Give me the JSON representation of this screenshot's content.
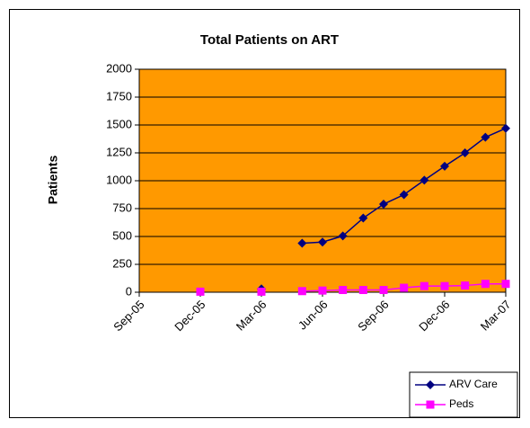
{
  "chart_data": {
    "type": "line",
    "title": "Total Patients on ART",
    "ylabel": "Patients",
    "x": [
      "2005-12",
      "2006-01",
      "2006-02",
      "2006-03",
      "2006-04",
      "2006-05",
      "2006-06",
      "2006-07",
      "2006-08",
      "2006-09",
      "2006-10",
      "2006-11",
      "2006-12",
      "2007-01",
      "2007-02",
      "2007-03"
    ],
    "series": [
      {
        "name": "ARV Care",
        "color": "#000080",
        "marker": "diamond",
        "values": [
          null,
          null,
          null,
          30,
          null,
          440,
          450,
          505,
          665,
          790,
          875,
          1005,
          1130,
          1250,
          1390,
          1470
        ]
      },
      {
        "name": "Peds",
        "color": "#ff00ff",
        "marker": "square",
        "values": [
          5,
          null,
          null,
          5,
          null,
          10,
          15,
          20,
          20,
          20,
          40,
          55,
          55,
          60,
          75,
          75
        ]
      }
    ],
    "xlim": [
      "2005-09",
      "2007-03"
    ],
    "xticks": [
      {
        "value": "2005-09",
        "label": "Sep-05"
      },
      {
        "value": "2005-12",
        "label": "Dec-05"
      },
      {
        "value": "2006-03",
        "label": "Mar-06"
      },
      {
        "value": "2006-06",
        "label": "Jun-06"
      },
      {
        "value": "2006-09",
        "label": "Sep-06"
      },
      {
        "value": "2006-12",
        "label": "Dec-06"
      },
      {
        "value": "2007-03",
        "label": "Mar-07"
      }
    ],
    "ylim": [
      0,
      2000
    ],
    "yticks": [
      0,
      250,
      500,
      750,
      1000,
      1250,
      1500,
      1750,
      2000
    ],
    "grid": true,
    "plot_background": "#ff9900",
    "legend": "lower right"
  }
}
